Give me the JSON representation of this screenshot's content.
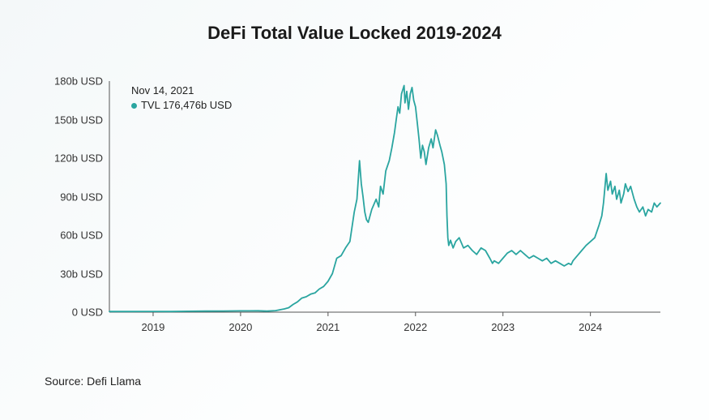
{
  "chart": {
    "type": "line",
    "title": "DeFi Total Value Locked 2019-2024",
    "title_fontsize": 22,
    "title_fontweight": 700,
    "background_gradient": [
      "#f4f8f9",
      "#fdfefe"
    ],
    "line_color": "#2aa5a0",
    "line_width": 1.8,
    "axis_color": "#555555",
    "text_color": "#1a1a1a",
    "label_color": "#333333",
    "y_axis": {
      "min": 0,
      "max": 180,
      "unit_suffix": "b USD",
      "ticks": [
        {
          "value": 0,
          "label": "0 USD"
        },
        {
          "value": 30,
          "label": "30b USD"
        },
        {
          "value": 60,
          "label": "60b USD"
        },
        {
          "value": 90,
          "label": "90b USD"
        },
        {
          "value": 120,
          "label": "120b USD"
        },
        {
          "value": 150,
          "label": "150b USD"
        },
        {
          "value": 180,
          "label": "180b USD"
        }
      ],
      "tick_fontsize": 13
    },
    "x_axis": {
      "min": 2018.5,
      "max": 2024.8,
      "ticks": [
        {
          "value": 2019,
          "label": "2019"
        },
        {
          "value": 2020,
          "label": "2020"
        },
        {
          "value": 2021,
          "label": "2021"
        },
        {
          "value": 2022,
          "label": "2022"
        },
        {
          "value": 2023,
          "label": "2023"
        },
        {
          "value": 2024,
          "label": "2024"
        }
      ],
      "tick_fontsize": 13
    },
    "series": [
      {
        "name": "TVL",
        "points": [
          [
            2018.5,
            0.5
          ],
          [
            2018.7,
            0.5
          ],
          [
            2018.9,
            0.6
          ],
          [
            2019.0,
            0.6
          ],
          [
            2019.2,
            0.5
          ],
          [
            2019.4,
            0.7
          ],
          [
            2019.6,
            0.8
          ],
          [
            2019.8,
            0.9
          ],
          [
            2020.0,
            1.0
          ],
          [
            2020.1,
            1.0
          ],
          [
            2020.2,
            1.1
          ],
          [
            2020.3,
            0.8
          ],
          [
            2020.4,
            1.2
          ],
          [
            2020.5,
            2.5
          ],
          [
            2020.55,
            3.5
          ],
          [
            2020.6,
            6
          ],
          [
            2020.65,
            8
          ],
          [
            2020.7,
            11
          ],
          [
            2020.75,
            12
          ],
          [
            2020.8,
            14
          ],
          [
            2020.85,
            15
          ],
          [
            2020.9,
            18
          ],
          [
            2020.95,
            20
          ],
          [
            2021.0,
            24
          ],
          [
            2021.05,
            30
          ],
          [
            2021.1,
            42
          ],
          [
            2021.15,
            44
          ],
          [
            2021.2,
            50
          ],
          [
            2021.25,
            55
          ],
          [
            2021.3,
            78
          ],
          [
            2021.33,
            88
          ],
          [
            2021.36,
            118
          ],
          [
            2021.38,
            100
          ],
          [
            2021.4,
            90
          ],
          [
            2021.42,
            78
          ],
          [
            2021.44,
            72
          ],
          [
            2021.46,
            70
          ],
          [
            2021.5,
            80
          ],
          [
            2021.55,
            88
          ],
          [
            2021.58,
            82
          ],
          [
            2021.6,
            98
          ],
          [
            2021.63,
            92
          ],
          [
            2021.66,
            110
          ],
          [
            2021.7,
            118
          ],
          [
            2021.73,
            128
          ],
          [
            2021.76,
            140
          ],
          [
            2021.78,
            150
          ],
          [
            2021.8,
            160
          ],
          [
            2021.82,
            155
          ],
          [
            2021.84,
            170
          ],
          [
            2021.87,
            176.5
          ],
          [
            2021.88,
            163
          ],
          [
            2021.9,
            172
          ],
          [
            2021.92,
            158
          ],
          [
            2021.94,
            170
          ],
          [
            2021.96,
            175
          ],
          [
            2021.98,
            165
          ],
          [
            2022.0,
            160
          ],
          [
            2022.02,
            148
          ],
          [
            2022.04,
            135
          ],
          [
            2022.06,
            120
          ],
          [
            2022.08,
            130
          ],
          [
            2022.1,
            125
          ],
          [
            2022.12,
            115
          ],
          [
            2022.15,
            128
          ],
          [
            2022.18,
            135
          ],
          [
            2022.2,
            128
          ],
          [
            2022.23,
            142
          ],
          [
            2022.25,
            138
          ],
          [
            2022.28,
            130
          ],
          [
            2022.3,
            125
          ],
          [
            2022.33,
            115
          ],
          [
            2022.35,
            100
          ],
          [
            2022.36,
            75
          ],
          [
            2022.37,
            58
          ],
          [
            2022.38,
            52
          ],
          [
            2022.4,
            56
          ],
          [
            2022.43,
            50
          ],
          [
            2022.46,
            55
          ],
          [
            2022.5,
            58
          ],
          [
            2022.55,
            50
          ],
          [
            2022.6,
            52
          ],
          [
            2022.65,
            48
          ],
          [
            2022.7,
            45
          ],
          [
            2022.75,
            50
          ],
          [
            2022.8,
            48
          ],
          [
            2022.85,
            42
          ],
          [
            2022.88,
            38
          ],
          [
            2022.9,
            40
          ],
          [
            2022.95,
            38
          ],
          [
            2023.0,
            42
          ],
          [
            2023.05,
            46
          ],
          [
            2023.1,
            48
          ],
          [
            2023.15,
            45
          ],
          [
            2023.2,
            48
          ],
          [
            2023.25,
            45
          ],
          [
            2023.3,
            42
          ],
          [
            2023.35,
            44
          ],
          [
            2023.4,
            42
          ],
          [
            2023.45,
            40
          ],
          [
            2023.5,
            42
          ],
          [
            2023.55,
            38
          ],
          [
            2023.6,
            40
          ],
          [
            2023.65,
            38
          ],
          [
            2023.7,
            36
          ],
          [
            2023.75,
            38
          ],
          [
            2023.78,
            37
          ],
          [
            2023.8,
            40
          ],
          [
            2023.85,
            44
          ],
          [
            2023.9,
            48
          ],
          [
            2023.95,
            52
          ],
          [
            2024.0,
            55
          ],
          [
            2024.05,
            58
          ],
          [
            2024.1,
            68
          ],
          [
            2024.13,
            75
          ],
          [
            2024.15,
            85
          ],
          [
            2024.18,
            108
          ],
          [
            2024.2,
            95
          ],
          [
            2024.23,
            102
          ],
          [
            2024.25,
            92
          ],
          [
            2024.28,
            98
          ],
          [
            2024.3,
            88
          ],
          [
            2024.33,
            95
          ],
          [
            2024.35,
            85
          ],
          [
            2024.38,
            92
          ],
          [
            2024.4,
            100
          ],
          [
            2024.43,
            94
          ],
          [
            2024.46,
            98
          ],
          [
            2024.5,
            88
          ],
          [
            2024.53,
            82
          ],
          [
            2024.56,
            78
          ],
          [
            2024.6,
            82
          ],
          [
            2024.63,
            75
          ],
          [
            2024.66,
            80
          ],
          [
            2024.7,
            78
          ],
          [
            2024.73,
            85
          ],
          [
            2024.76,
            82
          ],
          [
            2024.8,
            85
          ]
        ]
      }
    ],
    "tooltip": {
      "date": "Nov 14, 2021",
      "series_label": "TVL",
      "value_text": "176,476b USD",
      "marker_color": "#2aa5a0",
      "fontsize": 13,
      "position_x": 2018.75,
      "position_y": 178
    },
    "source_text": "Source: Defi Llama",
    "source_fontsize": 14
  }
}
